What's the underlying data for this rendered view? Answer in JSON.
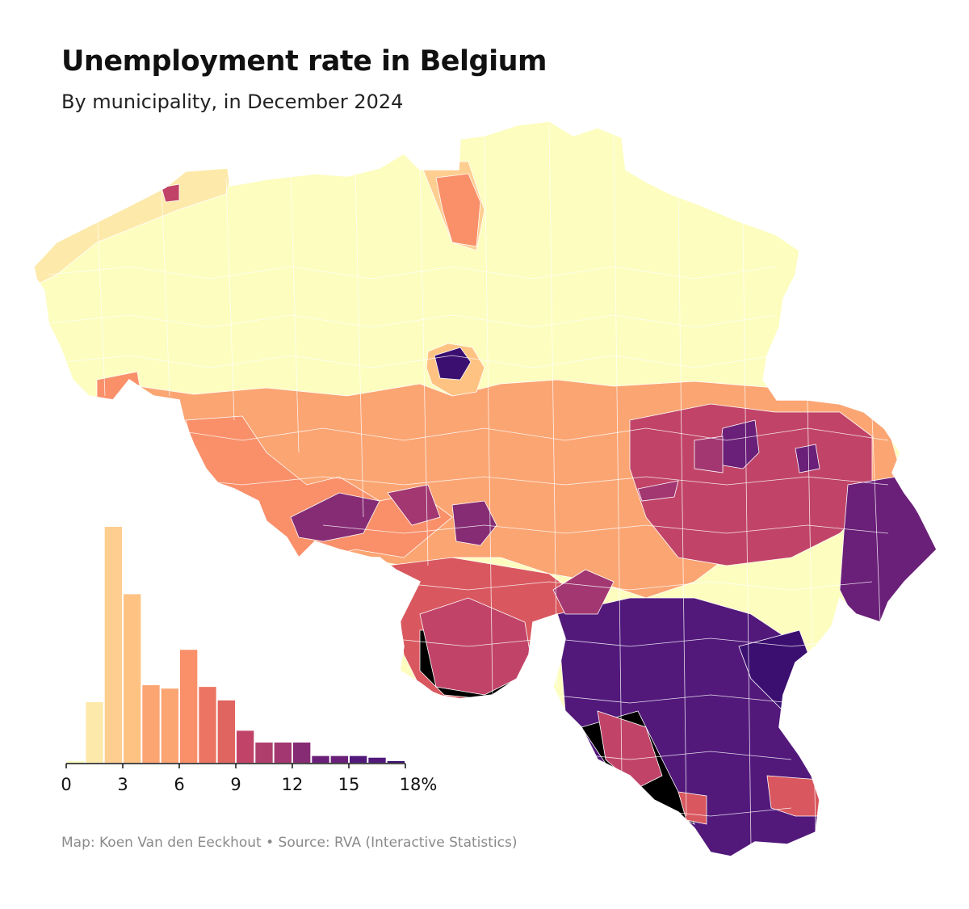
{
  "title": "Unemployment rate in Belgium",
  "subtitle": "By municipality, in December 2024",
  "credit": "Map: Koen Van den Eeckhout • Source: RVA (Interactive Statistics)",
  "colors": {
    "background": "#ffffff",
    "border": "#ffffff",
    "scale": [
      "#fcfdbf",
      "#fde9a9",
      "#fece91",
      "#fec382",
      "#fba573",
      "#f9906a",
      "#ec7462",
      "#d9585f",
      "#c14468",
      "#a23771",
      "#862c74",
      "#6a1f78",
      "#52197b",
      "#3b0f70"
    ]
  },
  "map": {
    "regions": [
      {
        "name": "flanders",
        "color_index": 2
      },
      {
        "name": "flanders-coast",
        "color_index": 5
      },
      {
        "name": "flanders-north-kempen",
        "color_index": 2
      },
      {
        "name": "brussels",
        "color_index": 12
      },
      {
        "name": "hainaut-north",
        "color_index": 6
      },
      {
        "name": "hainaut-south",
        "color_index": 8
      },
      {
        "name": "charleroi",
        "color_index": 11
      },
      {
        "name": "namur",
        "color_index": 6
      },
      {
        "name": "liege",
        "color_index": 6
      },
      {
        "name": "liege-city",
        "color_index": 12
      },
      {
        "name": "verviers",
        "color_index": 11
      },
      {
        "name": "east-cantons",
        "color_index": 1
      },
      {
        "name": "luxembourg",
        "color_index": 4
      },
      {
        "name": "arlon-region",
        "color_index": 0
      },
      {
        "name": "gaume",
        "color_index": 7
      }
    ]
  },
  "chart_data": {
    "type": "bar",
    "title": "",
    "xlabel": "",
    "ylabel": "",
    "x_ticks": [
      0,
      3,
      6,
      9,
      12,
      15,
      18
    ],
    "x_tick_labels": [
      "0",
      "3",
      "6",
      "9",
      "12",
      "15",
      "18%"
    ],
    "xlim": [
      0,
      18
    ],
    "bin_width": 1,
    "bins": [
      {
        "from": 0,
        "to": 1,
        "value": 1
      },
      {
        "from": 1,
        "to": 2,
        "value": 36
      },
      {
        "from": 2,
        "to": 3,
        "value": 140
      },
      {
        "from": 3,
        "to": 4,
        "value": 100
      },
      {
        "from": 4,
        "to": 5,
        "value": 46
      },
      {
        "from": 5,
        "to": 6,
        "value": 44
      },
      {
        "from": 6,
        "to": 7,
        "value": 67
      },
      {
        "from": 7,
        "to": 8,
        "value": 45
      },
      {
        "from": 8,
        "to": 9,
        "value": 37
      },
      {
        "from": 9,
        "to": 10,
        "value": 19
      },
      {
        "from": 10,
        "to": 11,
        "value": 12
      },
      {
        "from": 11,
        "to": 12,
        "value": 12
      },
      {
        "from": 12,
        "to": 13,
        "value": 12
      },
      {
        "from": 13,
        "to": 14,
        "value": 4
      },
      {
        "from": 14,
        "to": 15,
        "value": 4
      },
      {
        "from": 15,
        "to": 16,
        "value": 4
      },
      {
        "from": 16,
        "to": 17,
        "value": 3
      },
      {
        "from": 17,
        "to": 18,
        "value": 1
      }
    ],
    "colors": [
      "#fcfdbf",
      "#fde9a9",
      "#fece91",
      "#fec382",
      "#fba573",
      "#fba573",
      "#f9906a",
      "#ec7462",
      "#e0645f",
      "#c14468",
      "#b03e6c",
      "#a23771",
      "#862c74",
      "#6a1f78",
      "#6a1f78",
      "#52197b",
      "#52197b",
      "#3b0f70"
    ],
    "ylim": [
      0,
      140
    ]
  }
}
